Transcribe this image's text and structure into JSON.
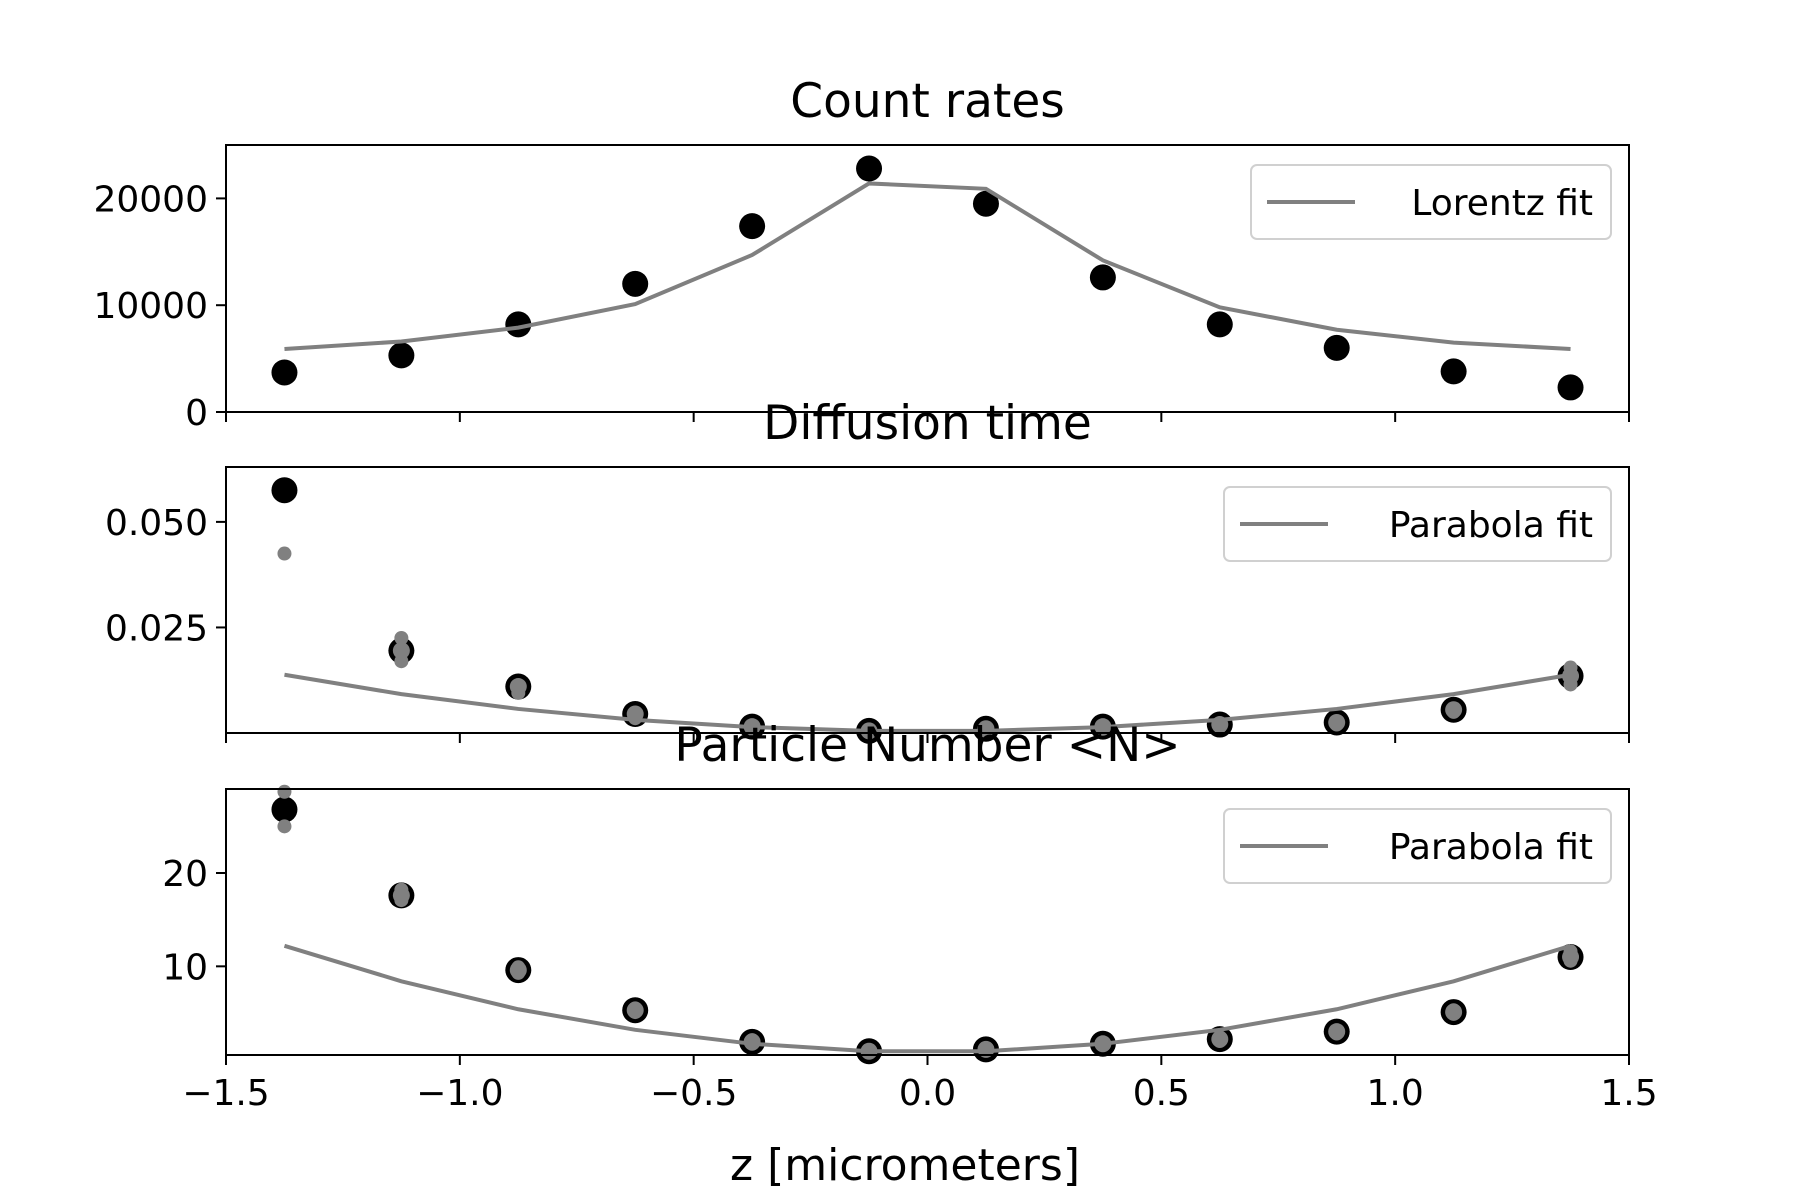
{
  "chart_data": [
    {
      "type": "scatter",
      "title": "Count rates",
      "xlabel": "",
      "ylabel": "",
      "xlim": [
        -1.5,
        1.5
      ],
      "ylim": [
        0,
        25000
      ],
      "yticks": [
        0,
        10000,
        20000
      ],
      "ytick_labels": [
        "0",
        "10000",
        "20000"
      ],
      "x": [
        -1.375,
        -1.125,
        -0.875,
        -0.625,
        -0.375,
        -0.125,
        0.125,
        0.375,
        0.625,
        0.875,
        1.125,
        1.375
      ],
      "series": [
        {
          "marker": "black-large",
          "values": [
            3700,
            5300,
            8200,
            12000,
            17400,
            22800,
            19500,
            12600,
            8200,
            6000,
            3800,
            2300
          ]
        },
        {
          "name": "Lorentz fit",
          "style": "line",
          "values": [
            5900,
            6600,
            7900,
            10100,
            14700,
            21400,
            20900,
            14200,
            9800,
            7700,
            6500,
            5900
          ]
        }
      ],
      "legend": {
        "position": "top-right",
        "entries": [
          "Lorentz fit"
        ]
      },
      "grid": false
    },
    {
      "type": "scatter",
      "title": "Diffusion time",
      "xlabel": "",
      "ylabel": "",
      "xlim": [
        -1.5,
        1.5
      ],
      "ylim": [
        0,
        0.063
      ],
      "yticks": [
        0.025,
        0.05
      ],
      "ytick_labels": [
        "0.025",
        "0.050"
      ],
      "x": [
        -1.375,
        -1.125,
        -0.875,
        -0.625,
        -0.375,
        -0.125,
        0.125,
        0.375,
        0.625,
        0.875,
        1.125,
        1.375
      ],
      "series": [
        {
          "marker": "black-large",
          "values": [
            0.0575,
            0.0195,
            0.011,
            0.0045,
            0.0015,
            0.0005,
            0.001,
            0.0015,
            0.002,
            0.0025,
            0.0055,
            0.0135
          ]
        },
        {
          "marker": "gray-large",
          "values": [
            null,
            0.0195,
            0.011,
            0.0045,
            0.0015,
            0.0005,
            0.001,
            0.0015,
            0.002,
            0.0025,
            0.0055,
            0.0135
          ]
        },
        {
          "marker": "gray-small",
          "values": [
            0.0425,
            0.0225,
            0.0105,
            0.004,
            0.0015,
            0.0005,
            0.001,
            0.0015,
            0.002,
            0.0025,
            0.0055,
            0.0155
          ]
        },
        {
          "marker": "gray-small",
          "values": [
            null,
            0.017,
            0.0095,
            0.0035,
            0.001,
            0.0005,
            0.0005,
            0.001,
            0.0015,
            0.002,
            0.005,
            0.0115
          ]
        },
        {
          "name": "Parabola fit",
          "style": "line",
          "values": [
            0.0138,
            0.0092,
            0.0057,
            0.0031,
            0.0014,
            0.0005,
            0.0005,
            0.0014,
            0.0031,
            0.0057,
            0.0092,
            0.0138
          ]
        }
      ],
      "legend": {
        "position": "top-right",
        "entries": [
          "Parabola fit"
        ]
      },
      "grid": false
    },
    {
      "type": "scatter",
      "title": "Particle Number <N>",
      "xlabel": "z [micrometers]",
      "ylabel": "",
      "xlim": [
        -1.5,
        1.5
      ],
      "ylim": [
        0.5,
        29
      ],
      "yticks": [
        10,
        20
      ],
      "ytick_labels": [
        "10",
        "20"
      ],
      "xticks": [
        -1.5,
        -1.0,
        -0.5,
        0.0,
        0.5,
        1.0,
        1.5
      ],
      "xtick_labels": [
        "−1.5",
        "−1.0",
        "−0.5",
        "0.0",
        "0.5",
        "1.0",
        "1.5"
      ],
      "x": [
        -1.375,
        -1.125,
        -0.875,
        -0.625,
        -0.375,
        -0.125,
        0.125,
        0.375,
        0.625,
        0.875,
        1.125,
        1.375
      ],
      "series": [
        {
          "marker": "black-large",
          "values": [
            26.8,
            17.6,
            9.6,
            5.3,
            1.9,
            0.9,
            1.1,
            1.7,
            2.2,
            3.0,
            5.1,
            11.0
          ]
        },
        {
          "marker": "gray-large",
          "values": [
            null,
            17.6,
            9.6,
            5.3,
            1.9,
            0.9,
            1.1,
            1.7,
            2.2,
            3.0,
            5.1,
            11.0
          ]
        },
        {
          "marker": "gray-small",
          "values": [
            28.7,
            18.2,
            9.9,
            5.5,
            2.1,
            1.0,
            1.2,
            1.8,
            2.4,
            3.1,
            5.3,
            11.6
          ]
        },
        {
          "marker": "gray-small",
          "values": [
            25.0,
            17.1,
            9.3,
            5.1,
            1.7,
            0.8,
            1.0,
            1.6,
            2.0,
            2.8,
            4.9,
            10.6
          ]
        },
        {
          "name": "Parabola fit",
          "style": "line",
          "values": [
            12.2,
            8.4,
            5.4,
            3.2,
            1.7,
            0.9,
            0.9,
            1.7,
            3.2,
            5.4,
            8.4,
            12.2
          ]
        }
      ],
      "legend": {
        "position": "top-right",
        "entries": [
          "Parabola fit"
        ]
      },
      "grid": false
    }
  ],
  "colors": {
    "points": "#000000",
    "fit": "#808080",
    "inner": "#808080"
  }
}
